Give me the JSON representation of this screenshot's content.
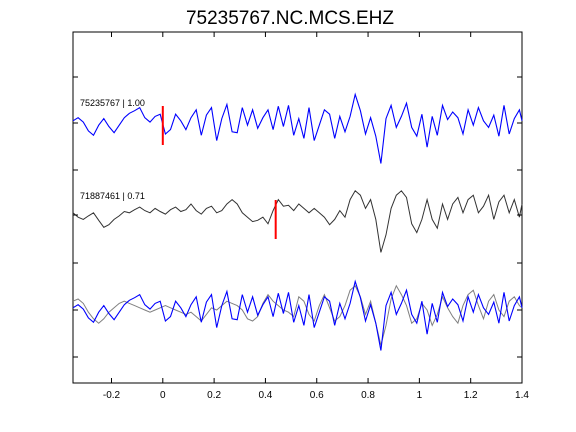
{
  "chart_data": {
    "type": "line",
    "title": "75235767.NC.MCS.EHZ",
    "xlabel": "",
    "ylabel": "",
    "xlim": [
      -0.35,
      1.4
    ],
    "xticks": [
      -0.2,
      0,
      0.2,
      0.4,
      0.6,
      0.8,
      1,
      1.2,
      1.4
    ],
    "xtick_labels": [
      "-0.2",
      "0",
      "0.2",
      "0.4",
      "0.6",
      "0.8",
      "1",
      "1.2",
      "1.4"
    ],
    "grid": false,
    "colors": {
      "master": "#0000ff",
      "similar": "#333333",
      "overlay_similar": "#808080",
      "pick": "#ff0000",
      "axes": "#000000"
    },
    "traces": [
      {
        "label": "75235767 | 1.00",
        "color": "master",
        "pick_time": 0.0,
        "x": [
          -0.35,
          -0.33,
          -0.31,
          -0.29,
          -0.27,
          -0.25,
          -0.23,
          -0.21,
          -0.19,
          -0.17,
          -0.15,
          -0.13,
          -0.11,
          -0.09,
          -0.07,
          -0.05,
          -0.03,
          -0.01,
          0.01,
          0.03,
          0.05,
          0.07,
          0.09,
          0.11,
          0.13,
          0.15,
          0.17,
          0.19,
          0.21,
          0.23,
          0.25,
          0.27,
          0.29,
          0.31,
          0.33,
          0.35,
          0.37,
          0.39,
          0.41,
          0.43,
          0.45,
          0.47,
          0.49,
          0.51,
          0.53,
          0.55,
          0.57,
          0.59,
          0.61,
          0.63,
          0.65,
          0.67,
          0.69,
          0.71,
          0.73,
          0.75,
          0.77,
          0.79,
          0.81,
          0.83,
          0.85,
          0.87,
          0.89,
          0.91,
          0.93,
          0.95,
          0.97,
          0.99,
          1.01,
          1.03,
          1.05,
          1.07,
          1.09,
          1.11,
          1.13,
          1.15,
          1.17,
          1.19,
          1.21,
          1.23,
          1.25,
          1.27,
          1.29,
          1.31,
          1.33,
          1.35,
          1.37,
          1.39,
          1.4
        ],
        "y": [
          0.05,
          0.12,
          0.02,
          -0.18,
          -0.28,
          -0.05,
          0.1,
          -0.08,
          -0.22,
          -0.05,
          0.12,
          0.22,
          0.28,
          0.35,
          0.12,
          0.02,
          0.15,
          0.2,
          -0.25,
          -0.15,
          0.2,
          0.05,
          -0.15,
          0.12,
          0.3,
          -0.28,
          0.18,
          0.35,
          -0.4,
          0.1,
          0.42,
          -0.2,
          -0.22,
          0.35,
          -0.05,
          0.3,
          -0.12,
          0.12,
          0.3,
          -0.15,
          0.38,
          -0.08,
          0.4,
          -0.28,
          0.1,
          -0.35,
          0.35,
          -0.4,
          -0.05,
          0.3,
          0.2,
          -0.35,
          0.15,
          -0.2,
          0.15,
          0.65,
          0.28,
          -0.25,
          0.12,
          -0.3,
          -0.92,
          0.1,
          0.4,
          -0.1,
          0.15,
          0.45,
          -0.1,
          -0.3,
          0.2,
          -0.55,
          0.15,
          -0.28,
          0.4,
          0.08,
          0.25,
          0.12,
          -0.25,
          0.3,
          -0.05,
          0.35,
          0.05,
          -0.1,
          0.18,
          -0.3,
          0.4,
          -0.25,
          0.1,
          0.3,
          0.05
        ]
      },
      {
        "label": "71887461 | 0.71",
        "color": "similar",
        "pick_time": 0.44,
        "x": [
          -0.35,
          -0.33,
          -0.31,
          -0.29,
          -0.27,
          -0.25,
          -0.23,
          -0.21,
          -0.19,
          -0.17,
          -0.15,
          -0.13,
          -0.11,
          -0.09,
          -0.07,
          -0.05,
          -0.03,
          -0.01,
          0.01,
          0.03,
          0.05,
          0.07,
          0.09,
          0.11,
          0.13,
          0.15,
          0.17,
          0.19,
          0.21,
          0.23,
          0.25,
          0.27,
          0.29,
          0.31,
          0.33,
          0.35,
          0.37,
          0.39,
          0.41,
          0.43,
          0.45,
          0.47,
          0.49,
          0.51,
          0.53,
          0.55,
          0.57,
          0.59,
          0.61,
          0.63,
          0.65,
          0.67,
          0.69,
          0.71,
          0.73,
          0.75,
          0.77,
          0.79,
          0.81,
          0.83,
          0.85,
          0.87,
          0.89,
          0.91,
          0.93,
          0.95,
          0.97,
          0.99,
          1.01,
          1.03,
          1.05,
          1.07,
          1.09,
          1.11,
          1.13,
          1.15,
          1.17,
          1.19,
          1.21,
          1.23,
          1.25,
          1.27,
          1.29,
          1.31,
          1.33,
          1.35,
          1.37,
          1.39,
          1.4
        ],
        "y": [
          0.05,
          -0.05,
          -0.1,
          -0.02,
          0.05,
          -0.12,
          -0.28,
          -0.22,
          -0.1,
          -0.02,
          0.08,
          0.05,
          0.12,
          0.18,
          0.1,
          0.05,
          0.15,
          0.08,
          0.02,
          0.12,
          0.18,
          0.08,
          0.12,
          0.25,
          0.1,
          0.02,
          0.15,
          0.2,
          0.05,
          0.1,
          0.25,
          0.35,
          0.25,
          0.05,
          -0.05,
          -0.15,
          -0.12,
          -0.05,
          -0.2,
          0.1,
          0.35,
          0.2,
          0.22,
          0.1,
          0.25,
          0.15,
          0.05,
          0.15,
          0.05,
          -0.05,
          -0.22,
          -0.1,
          0.1,
          -0.05,
          0.35,
          0.55,
          0.45,
          0.15,
          0.35,
          -0.1,
          -0.85,
          -0.45,
          0.15,
          0.45,
          0.55,
          0.4,
          -0.2,
          -0.4,
          -0.1,
          0.35,
          -0.1,
          -0.3,
          0.25,
          -0.1,
          0.25,
          0.4,
          0.05,
          0.35,
          0.45,
          0.05,
          0.2,
          0.45,
          -0.1,
          0.3,
          0.45,
          0.05,
          0.35,
          -0.05,
          0.25
        ]
      },
      {
        "label": "",
        "color": "overlay",
        "overlay": true,
        "pick_time": null,
        "x_master": [
          -0.35,
          -0.33,
          -0.31,
          -0.29,
          -0.27,
          -0.25,
          -0.23,
          -0.21,
          -0.19,
          -0.17,
          -0.15,
          -0.13,
          -0.11,
          -0.09,
          -0.07,
          -0.05,
          -0.03,
          -0.01,
          0.01,
          0.03,
          0.05,
          0.07,
          0.09,
          0.11,
          0.13,
          0.15,
          0.17,
          0.19,
          0.21,
          0.23,
          0.25,
          0.27,
          0.29,
          0.31,
          0.33,
          0.35,
          0.37,
          0.39,
          0.41,
          0.43,
          0.45,
          0.47,
          0.49,
          0.51,
          0.53,
          0.55,
          0.57,
          0.59,
          0.61,
          0.63,
          0.65,
          0.67,
          0.69,
          0.71,
          0.73,
          0.75,
          0.77,
          0.79,
          0.81,
          0.83,
          0.85,
          0.87,
          0.89,
          0.91,
          0.93,
          0.95,
          0.97,
          0.99,
          1.01,
          1.03,
          1.05,
          1.07,
          1.09,
          1.11,
          1.13,
          1.15,
          1.17,
          1.19,
          1.21,
          1.23,
          1.25,
          1.27,
          1.29,
          1.31,
          1.33,
          1.35,
          1.37,
          1.39,
          1.4
        ],
        "y_master": [
          0.05,
          0.12,
          0.02,
          -0.18,
          -0.28,
          -0.05,
          0.1,
          -0.08,
          -0.22,
          -0.05,
          0.12,
          0.22,
          0.28,
          0.35,
          0.12,
          0.02,
          0.15,
          0.2,
          -0.25,
          -0.15,
          0.2,
          0.05,
          -0.15,
          0.12,
          0.3,
          -0.28,
          0.18,
          0.35,
          -0.4,
          0.1,
          0.42,
          -0.2,
          -0.22,
          0.35,
          -0.05,
          0.3,
          -0.12,
          0.12,
          0.3,
          -0.15,
          0.38,
          -0.08,
          0.4,
          -0.28,
          0.1,
          -0.35,
          0.35,
          -0.4,
          -0.05,
          0.3,
          0.2,
          -0.35,
          0.15,
          -0.2,
          0.15,
          0.65,
          0.28,
          -0.25,
          0.12,
          -0.3,
          -0.92,
          0.1,
          0.4,
          -0.1,
          0.15,
          0.45,
          -0.1,
          -0.3,
          0.2,
          -0.55,
          0.15,
          -0.28,
          0.4,
          0.08,
          0.25,
          0.12,
          -0.25,
          0.3,
          -0.05,
          0.35,
          0.05,
          -0.1,
          0.18,
          -0.3,
          0.4,
          -0.25,
          0.1,
          0.3,
          0.05
        ],
        "x_similar": [
          -0.35,
          -0.33,
          -0.31,
          -0.29,
          -0.27,
          -0.25,
          -0.23,
          -0.21,
          -0.19,
          -0.17,
          -0.15,
          -0.13,
          -0.11,
          -0.09,
          -0.07,
          -0.05,
          -0.03,
          -0.01,
          0.01,
          0.03,
          0.05,
          0.07,
          0.09,
          0.11,
          0.13,
          0.15,
          0.17,
          0.19,
          0.21,
          0.23,
          0.25,
          0.27,
          0.29,
          0.31,
          0.33,
          0.35,
          0.37,
          0.39,
          0.41,
          0.43,
          0.45,
          0.47,
          0.49,
          0.51,
          0.53,
          0.55,
          0.57,
          0.59,
          0.61,
          0.63,
          0.65,
          0.67,
          0.69,
          0.71,
          0.73,
          0.75,
          0.77,
          0.79,
          0.81,
          0.83,
          0.85,
          0.87,
          0.89,
          0.91,
          0.93,
          0.95,
          0.97,
          0.99,
          1.01,
          1.03,
          1.05,
          1.07,
          1.09,
          1.11,
          1.13,
          1.15,
          1.17,
          1.19,
          1.21,
          1.23,
          1.25,
          1.27,
          1.29,
          1.31,
          1.33,
          1.35,
          1.37,
          1.39,
          1.4
        ],
        "y_similar": [
          0.2,
          0.25,
          0.15,
          -0.05,
          -0.2,
          -0.3,
          -0.2,
          -0.05,
          0.05,
          0.15,
          0.2,
          0.15,
          0.1,
          0.05,
          0.0,
          -0.05,
          0.0,
          0.05,
          0.1,
          0.05,
          0.0,
          -0.05,
          -0.1,
          -0.05,
          -0.15,
          -0.25,
          -0.1,
          0.05,
          0.0,
          0.1,
          0.2,
          0.15,
          0.1,
          0.0,
          -0.2,
          -0.25,
          -0.15,
          0.15,
          0.35,
          0.2,
          0.1,
          0.0,
          -0.05,
          -0.15,
          0.3,
          0.2,
          -0.1,
          -0.25,
          0.1,
          0.35,
          0.05,
          -0.25,
          -0.15,
          0.1,
          0.45,
          0.55,
          0.3,
          -0.1,
          0.2,
          -0.3,
          -0.8,
          -0.35,
          0.25,
          0.55,
          0.35,
          0.1,
          -0.3,
          -0.2,
          0.15,
          0.0,
          -0.35,
          -0.1,
          0.3,
          0.05,
          -0.15,
          -0.3,
          0.1,
          0.35,
          0.45,
          0.1,
          -0.2,
          0.2,
          0.35,
          0.0,
          -0.15,
          0.2,
          0.3,
          0.1,
          0.05
        ]
      }
    ]
  }
}
